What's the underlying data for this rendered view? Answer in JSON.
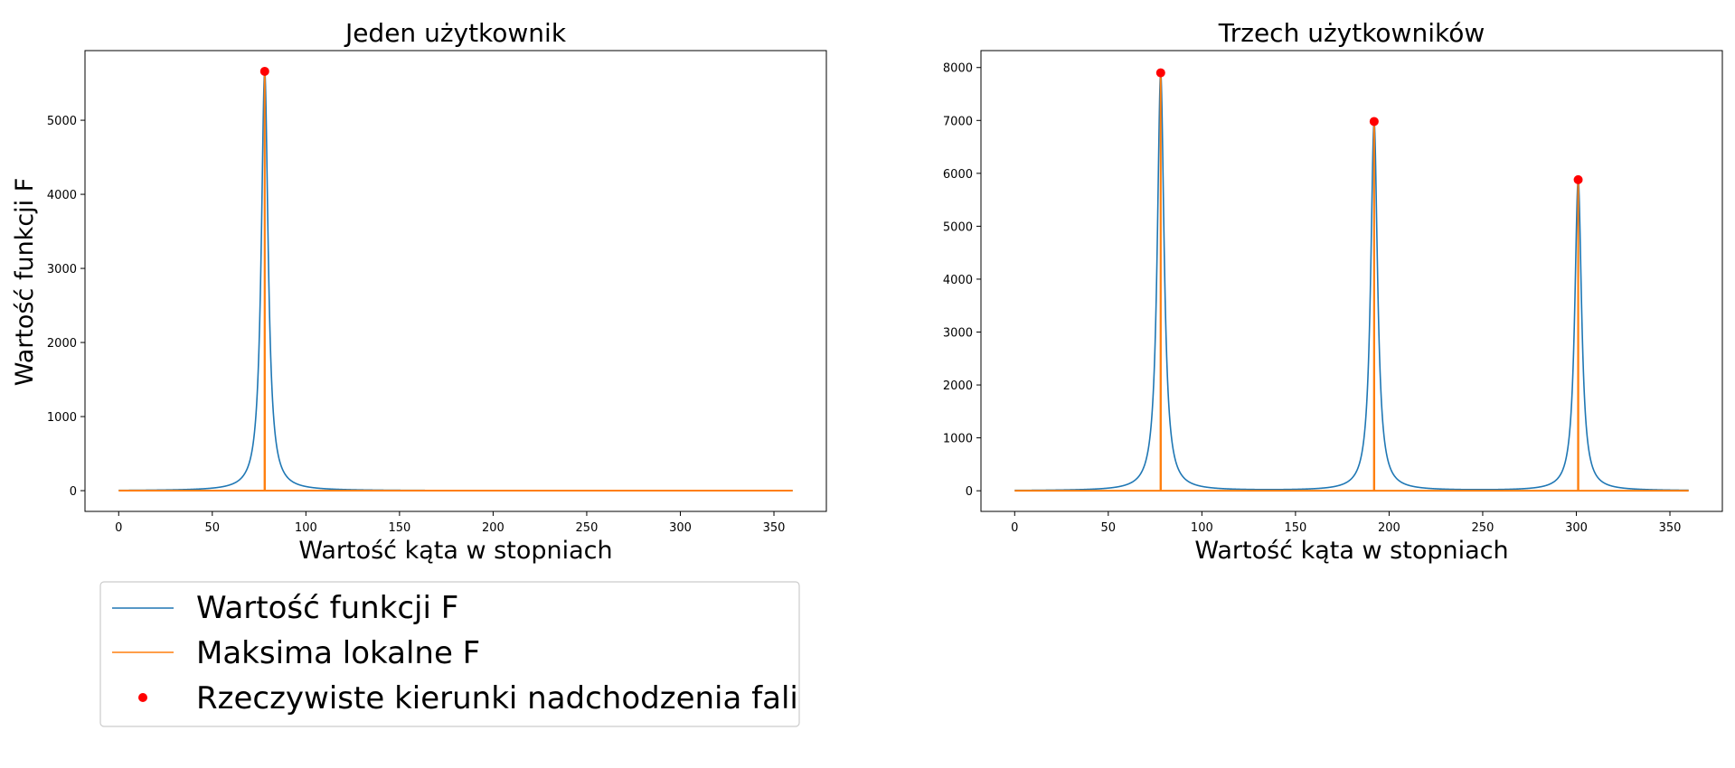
{
  "ylabel": "Wartość funkcji F",
  "legend": {
    "placement": "below-left",
    "items": [
      {
        "label": "Wartość funkcji F",
        "kind": "line",
        "color": "#1f77b4"
      },
      {
        "label": "Maksima lokalne F",
        "kind": "line",
        "color": "#ff7f0e"
      },
      {
        "label": "Rzeczywiste kierunki nadchodzenia fali",
        "kind": "marker",
        "color": "#ff0000"
      }
    ]
  },
  "colors": {
    "function": "#1f77b4",
    "maxima": "#ff7f0e",
    "actual": "#ff0000"
  },
  "chart_data": [
    {
      "type": "line",
      "title": "Jeden użytkownik",
      "xlabel": "Wartość kąta w stopniach",
      "ylabel": "Wartość funkcji F",
      "xlim": [
        -18,
        378
      ],
      "ylim": [
        -280,
        5940
      ],
      "xticks": [
        0,
        50,
        100,
        150,
        200,
        250,
        300,
        350
      ],
      "yticks": [
        0,
        1000,
        2000,
        3000,
        4000,
        5000
      ],
      "xrange": [
        0,
        360
      ],
      "grid": false,
      "peaks": [
        {
          "angle": 78,
          "value": 5660,
          "width": 2.2
        }
      ],
      "series": [
        {
          "name": "Wartość funkcji F",
          "kind": "function"
        },
        {
          "name": "Maksima lokalne F",
          "kind": "maxima",
          "x": [
            78
          ],
          "y": [
            5660
          ]
        },
        {
          "name": "Rzeczywiste kierunki nadchodzenia fali",
          "kind": "points",
          "x": [
            78
          ],
          "y": [
            5660
          ]
        }
      ]
    },
    {
      "type": "line",
      "title": "Trzech użytkowników",
      "xlabel": "Wartość kąta w stopniach",
      "xlim": [
        -18,
        378
      ],
      "ylim": [
        -390,
        8320
      ],
      "xticks": [
        0,
        50,
        100,
        150,
        200,
        250,
        300,
        350
      ],
      "yticks": [
        0,
        1000,
        2000,
        3000,
        4000,
        5000,
        6000,
        7000,
        8000
      ],
      "xrange": [
        0,
        360
      ],
      "grid": false,
      "peaks": [
        {
          "angle": 78,
          "value": 7900,
          "width": 2.2
        },
        {
          "angle": 192,
          "value": 6980,
          "width": 2.2
        },
        {
          "angle": 301,
          "value": 5880,
          "width": 2.2
        }
      ],
      "series": [
        {
          "name": "Wartość funkcji F",
          "kind": "function"
        },
        {
          "name": "Maksima lokalne F",
          "kind": "maxima",
          "x": [
            78,
            192,
            301
          ],
          "y": [
            7900,
            6980,
            5880
          ]
        },
        {
          "name": "Rzeczywiste kierunki nadchodzenia fali",
          "kind": "points",
          "x": [
            78,
            192,
            301
          ],
          "y": [
            7900,
            6980,
            5880
          ]
        }
      ]
    }
  ]
}
